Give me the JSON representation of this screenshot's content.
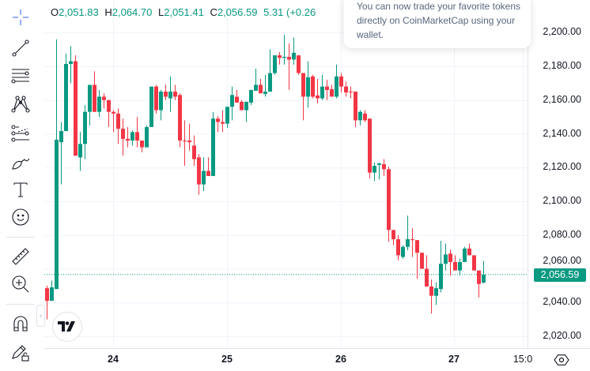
{
  "legend": {
    "open_label": "O",
    "open": "2,051.83",
    "high_label": "H",
    "high": "2,064.70",
    "low_label": "L",
    "low": "2,051.41",
    "close_label": "C",
    "close": "2,056.59",
    "change": "5.31 (+0.26"
  },
  "popup": {
    "lines": [
      "You can now trade your favorite tokens",
      "directly on CoinMarketCap using your",
      "wallet."
    ]
  },
  "toolbar": {
    "icons": [
      "crosshair-icon",
      "trend-line-icon",
      "horizontal-lines-icon",
      "pattern-icon",
      "forecasting-icon",
      "brush-icon",
      "text-icon",
      "emoji-icon",
      "ruler-icon",
      "zoom-in-icon",
      "magnet-icon",
      "lock-drawings-icon"
    ]
  },
  "price_axis": {
    "labels": [
      "2,200.00",
      "2,180.00",
      "2,160.00",
      "2,140.00",
      "2,120.00",
      "2,100.00",
      "2,080.00",
      "2,060.00",
      "2,040.00",
      "2,020.00"
    ],
    "last_price": "2,056.59"
  },
  "time_axis": {
    "labels": [
      "24",
      "25",
      "26",
      "27",
      "15:0"
    ]
  },
  "colors": {
    "up": "#089981",
    "down": "#f23645",
    "accent": "#2962ff"
  },
  "chart_data": {
    "type": "candlestick",
    "interval": "1h",
    "ylim": [
      2015,
      2205
    ],
    "yticks": [
      2200,
      2180,
      2160,
      2140,
      2120,
      2100,
      2080,
      2060,
      2040,
      2020
    ],
    "xticks": [
      "24",
      "25",
      "26",
      "27",
      "15:0"
    ],
    "grid": true,
    "last_price": 2056.59,
    "ohlc": [
      [
        2048.5,
        2050,
        2030,
        2041
      ],
      [
        2041,
        2053,
        2041,
        2049
      ],
      [
        2048,
        2196,
        2048,
        2136.5
      ],
      [
        2135,
        2147,
        2110,
        2141.6
      ],
      [
        2141.6,
        2187.5,
        2141.6,
        2181.4
      ],
      [
        2181.4,
        2192,
        2170,
        2183
      ],
      [
        2183,
        2186.5,
        2127,
        2127
      ],
      [
        2126,
        2141,
        2118,
        2134
      ],
      [
        2134,
        2157,
        2125,
        2153
      ],
      [
        2153,
        2169,
        2145,
        2169
      ],
      [
        2169,
        2177,
        2153,
        2153
      ],
      [
        2153,
        2166,
        2150,
        2162
      ],
      [
        2162,
        2164,
        2155,
        2160
      ],
      [
        2160,
        2160,
        2144,
        2153
      ],
      [
        2153,
        2154,
        2141,
        2152
      ],
      [
        2152,
        2155,
        2134,
        2143
      ],
      [
        2143,
        2149,
        2127,
        2137
      ],
      [
        2137,
        2144,
        2132,
        2136
      ],
      [
        2136,
        2142,
        2133,
        2141
      ],
      [
        2141,
        2150,
        2132,
        2136
      ],
      [
        2136,
        2136,
        2129,
        2132
      ],
      [
        2132,
        2145,
        2132,
        2144
      ],
      [
        2144,
        2168,
        2144,
        2168
      ],
      [
        2168,
        2169,
        2152,
        2154
      ],
      [
        2154,
        2166,
        2148,
        2165
      ],
      [
        2165,
        2169,
        2160,
        2162
      ],
      [
        2161,
        2174,
        2153,
        2165
      ],
      [
        2165,
        2169,
        2160,
        2162
      ],
      [
        2163,
        2164,
        2132,
        2136
      ],
      [
        2136,
        2148,
        2121,
        2135.5
      ],
      [
        2136,
        2146,
        2130,
        2135
      ],
      [
        2133,
        2139,
        2121,
        2125
      ],
      [
        2126,
        2128,
        2104,
        2110
      ],
      [
        2110,
        2126,
        2106,
        2118
      ],
      [
        2118,
        2126,
        2115,
        2115
      ],
      [
        2115,
        2153,
        2115,
        2149
      ],
      [
        2149,
        2150.5,
        2141,
        2147
      ],
      [
        2147,
        2154,
        2141,
        2146
      ],
      [
        2146,
        2156,
        2143.5,
        2156
      ],
      [
        2156,
        2168,
        2148,
        2163
      ],
      [
        2162,
        2166,
        2158.5,
        2158.5
      ],
      [
        2159,
        2160,
        2154,
        2154
      ],
      [
        2154,
        2159,
        2147,
        2159
      ],
      [
        2158.5,
        2166,
        2157,
        2166
      ],
      [
        2165.5,
        2178.6,
        2165.5,
        2169
      ],
      [
        2169,
        2172.5,
        2164,
        2164
      ],
      [
        2163.6,
        2175,
        2162,
        2165
      ],
      [
        2165,
        2190,
        2165,
        2176
      ],
      [
        2176,
        2186.5,
        2175,
        2186.5
      ],
      [
        2186.5,
        2188.5,
        2181,
        2185
      ],
      [
        2185,
        2198.7,
        2181,
        2185.6
      ],
      [
        2185.6,
        2193.5,
        2166,
        2184
      ],
      [
        2184,
        2197,
        2181,
        2188
      ],
      [
        2186.5,
        2186.5,
        2175,
        2176
      ],
      [
        2176,
        2176,
        2148,
        2162
      ],
      [
        2162,
        2183,
        2155.5,
        2173.5
      ],
      [
        2174,
        2175,
        2161,
        2162
      ],
      [
        2162.7,
        2172.5,
        2158,
        2161
      ],
      [
        2161,
        2175,
        2160,
        2168
      ],
      [
        2168,
        2172,
        2160,
        2166
      ],
      [
        2166.4,
        2169,
        2162,
        2162
      ],
      [
        2162,
        2181,
        2161,
        2174
      ],
      [
        2174,
        2176,
        2164.5,
        2168
      ],
      [
        2168,
        2171,
        2162,
        2164.5
      ],
      [
        2165,
        2168,
        2161,
        2164.5
      ],
      [
        2165,
        2165,
        2144,
        2148
      ],
      [
        2148,
        2154,
        2145,
        2153
      ],
      [
        2152,
        2154,
        2147,
        2148
      ],
      [
        2149,
        2149,
        2113.5,
        2117
      ],
      [
        2117,
        2123,
        2112,
        2121
      ],
      [
        2121.5,
        2123,
        2113,
        2122.4
      ],
      [
        2122,
        2125,
        2115,
        2119
      ],
      [
        2119,
        2120.6,
        2076,
        2083
      ],
      [
        2083,
        2083,
        2074,
        2077.5
      ],
      [
        2077.5,
        2080,
        2065,
        2068
      ],
      [
        2067,
        2074,
        2066,
        2073
      ],
      [
        2073,
        2091.5,
        2071,
        2077.5
      ],
      [
        2077.5,
        2084,
        2067,
        2077
      ],
      [
        2077,
        2077,
        2054,
        2069.5
      ],
      [
        2069.5,
        2069.5,
        2060,
        2060
      ],
      [
        2060,
        2068,
        2049.5,
        2049.5
      ],
      [
        2049.5,
        2053.6,
        2033.5,
        2044
      ],
      [
        2044,
        2052,
        2038.6,
        2048.5
      ],
      [
        2048,
        2076.6,
        2046,
        2063
      ],
      [
        2063,
        2075,
        2059,
        2068.5
      ],
      [
        2069,
        2071.4,
        2056,
        2064
      ],
      [
        2064,
        2068,
        2059,
        2059
      ],
      [
        2059,
        2066,
        2056,
        2064
      ],
      [
        2064,
        2073,
        2064,
        2072
      ],
      [
        2072,
        2075,
        2068,
        2068
      ],
      [
        2068,
        2068,
        2059,
        2059
      ],
      [
        2059,
        2059,
        2043,
        2051
      ],
      [
        2051.83,
        2064.7,
        2051.41,
        2056.59
      ]
    ]
  }
}
